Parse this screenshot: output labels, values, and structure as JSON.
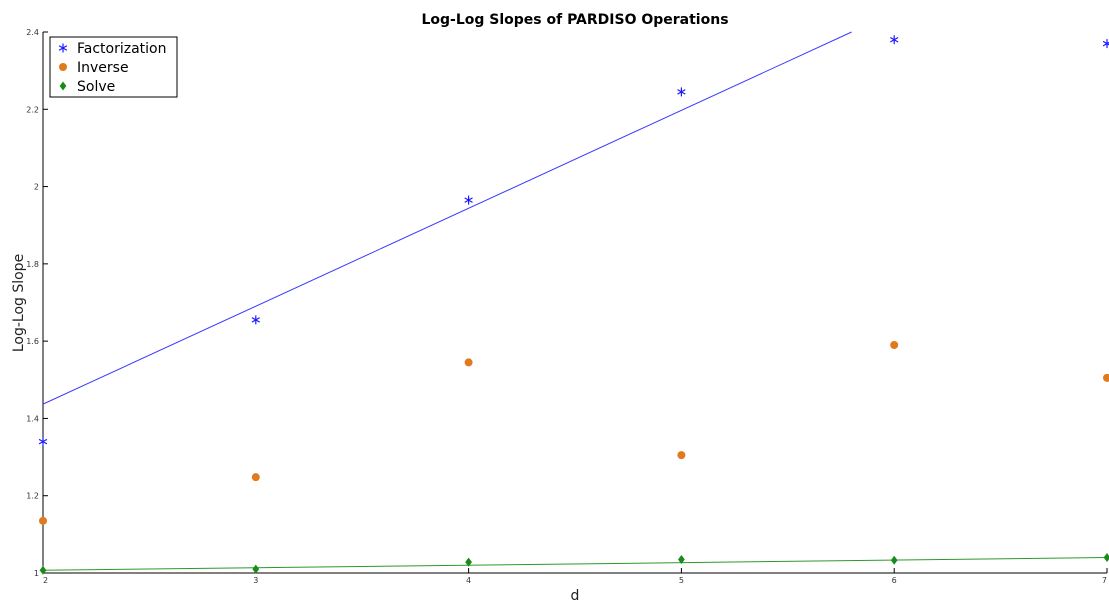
{
  "colors": {
    "factorization": "#1a1aff",
    "inverse": "#e07a1a",
    "solve": "#1a8a1a",
    "fit_factorization": "#3a3aff",
    "fit_solve": "#2a9a2a",
    "axis": "#000000"
  },
  "chart_data": {
    "type": "scatter",
    "title": "Log-Log Slopes of PARDISO Operations",
    "xlabel": "d",
    "ylabel": "Log-Log Slope",
    "xlim": [
      2,
      7
    ],
    "ylim": [
      1,
      2.4
    ],
    "xticks": [
      2,
      3,
      4,
      5,
      6,
      7
    ],
    "yticks": [
      1,
      1.2,
      1.4,
      1.6,
      1.8,
      2,
      2.2,
      2.4
    ],
    "ytick_labels": [
      "1",
      "1.2",
      "1.4",
      "1.6",
      "1.8",
      "2",
      "2.2",
      "2.4"
    ],
    "grid": false,
    "legend_position": "top-left",
    "series": [
      {
        "key": "factorization",
        "name": "Factorization",
        "marker": "asterisk",
        "x": [
          2,
          3,
          4,
          5,
          6,
          7
        ],
        "y": [
          1.34,
          1.655,
          1.965,
          2.245,
          2.38,
          2.37
        ]
      },
      {
        "key": "inverse",
        "name": "Inverse",
        "marker": "circle",
        "x": [
          2,
          3,
          4,
          5,
          6,
          7
        ],
        "y": [
          1.135,
          1.248,
          1.545,
          1.305,
          1.59,
          1.505
        ]
      },
      {
        "key": "solve",
        "name": "Solve",
        "marker": "diamond",
        "x": [
          2,
          3,
          4,
          5,
          6,
          7
        ],
        "y": [
          1.007,
          1.01,
          1.028,
          1.035,
          1.033,
          1.04
        ]
      }
    ],
    "fit_lines": [
      {
        "key": "fit_factorization",
        "x": [
          2,
          5.8
        ],
        "y": [
          1.437,
          2.4
        ]
      },
      {
        "key": "fit_solve",
        "x": [
          2,
          7
        ],
        "y": [
          1.007,
          1.04
        ]
      }
    ]
  }
}
